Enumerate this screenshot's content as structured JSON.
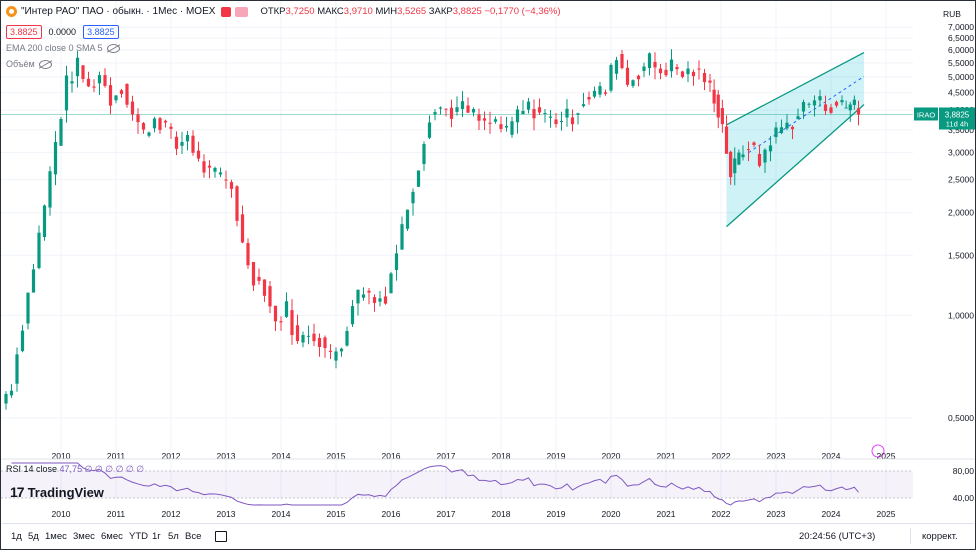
{
  "symbol": {
    "title": "\"Интер РАО\" ПАО · обыкн. · 1Мес · MOEX",
    "currency": "RUB",
    "ohlc": {
      "open_label": "ОТКР",
      "open": "3,7250",
      "high_label": "МАКС",
      "high": "3,9710",
      "low_label": "МИН",
      "low": "3,5265",
      "close_label": "ЗАКР",
      "close": "3,8825",
      "change": "−0,1770 (−4,36%)"
    },
    "sell_price": "3.8825",
    "spread": "0.0000",
    "buy_price": "3.8825",
    "ticker_tag": "IRAO",
    "last_price_tag": "3,8825",
    "countdown_tag": "11d 4h"
  },
  "indicators": {
    "ema": "EMA 200 close 0 SMA 5",
    "volume": "Объём",
    "rsi_name": "RSI 14 close",
    "rsi_values": "47,75  ∅ ∅ ∅ ∅ ∅ ∅",
    "rsi_ticks": [
      "80,00",
      "40,00"
    ]
  },
  "branding": {
    "logo_text": "TradingView",
    "logo_icon": "tradingview-logo-icon"
  },
  "bottom_bar": {
    "timeframes": [
      "1д",
      "5д",
      "1мес",
      "3мес",
      "6мес",
      "YTD",
      "1г",
      "5л",
      "Все"
    ],
    "clock": "20:24:56 (UTC+3)",
    "adjust": "коррект."
  },
  "colors": {
    "up": "#089981",
    "down": "#f23645",
    "channel": "#26c6da",
    "rsi": "#7e57c2",
    "lastprice": "#089981"
  },
  "chart_data": {
    "type": "candlestick",
    "interval": "1 month",
    "y_axis": {
      "scale": "log",
      "ticks": [
        0.5,
        1.0,
        1.5,
        2.0,
        2.5,
        3.0,
        3.5,
        4.0,
        4.5,
        5.0,
        5.5,
        6.0,
        6.5,
        7.0
      ],
      "tick_labels": [
        "0,5000",
        "1,0000",
        "1,5000",
        "2,0000",
        "2,5000",
        "3,0000",
        "3,5000",
        "4,0000",
        "4,5000",
        "5,0000",
        "5,5000",
        "6,0000",
        "6,5000",
        "7,0000"
      ],
      "range": [
        0.4,
        7.3
      ]
    },
    "x_axis": {
      "tick_labels": [
        "2010",
        "2011",
        "2012",
        "2013",
        "2014",
        "2015",
        "2016",
        "2017",
        "2018",
        "2019",
        "2020",
        "2021",
        "2022",
        "2023",
        "2024",
        "2025"
      ],
      "range": [
        2009.0,
        2025.4
      ]
    },
    "last_price": 3.8825,
    "channel": {
      "upper": [
        [
          2022.1,
          3.62
        ],
        [
          2024.6,
          5.9
        ]
      ],
      "lower": [
        [
          2022.1,
          1.82
        ],
        [
          2024.6,
          4.15
        ]
      ],
      "mid_dashed": [
        [
          2022.5,
          3.0
        ],
        [
          2024.6,
          5.02
        ]
      ]
    },
    "anchors": [
      [
        2009.0,
        0.55,
        0.63
      ],
      [
        2009.2,
        0.63,
        0.95
      ],
      [
        2009.4,
        0.95,
        1.4
      ],
      [
        2009.6,
        1.4,
        2.1
      ],
      [
        2009.8,
        2.1,
        3.2
      ],
      [
        2010.0,
        3.2,
        4.8
      ],
      [
        2010.2,
        4.8,
        5.4
      ],
      [
        2010.4,
        5.4,
        4.6
      ],
      [
        2010.6,
        4.6,
        5.1
      ],
      [
        2010.8,
        5.1,
        4.3
      ],
      [
        2011.0,
        4.3,
        4.7
      ],
      [
        2011.2,
        4.7,
        3.9
      ],
      [
        2011.4,
        3.9,
        3.4
      ],
      [
        2011.6,
        3.4,
        3.8
      ],
      [
        2011.8,
        3.8,
        3.6
      ],
      [
        2012.0,
        3.6,
        3.1
      ],
      [
        2012.2,
        3.1,
        3.4
      ],
      [
        2012.4,
        3.4,
        2.8
      ],
      [
        2012.6,
        2.8,
        2.6
      ],
      [
        2012.8,
        2.6,
        2.55
      ],
      [
        2013.0,
        2.55,
        2.4
      ],
      [
        2013.2,
        2.4,
        1.6
      ],
      [
        2013.4,
        1.6,
        1.3
      ],
      [
        2013.6,
        1.3,
        1.2
      ],
      [
        2013.8,
        1.2,
        0.95
      ],
      [
        2014.0,
        0.95,
        1.05
      ],
      [
        2014.2,
        1.05,
        0.82
      ],
      [
        2014.4,
        0.82,
        0.9
      ],
      [
        2014.6,
        0.9,
        0.85
      ],
      [
        2014.8,
        0.85,
        0.75
      ],
      [
        2015.0,
        0.75,
        0.82
      ],
      [
        2015.2,
        0.82,
        1.1
      ],
      [
        2015.4,
        1.1,
        1.2
      ],
      [
        2015.6,
        1.2,
        1.1
      ],
      [
        2015.8,
        1.1,
        1.15
      ],
      [
        2016.0,
        1.15,
        1.55
      ],
      [
        2016.2,
        1.55,
        2.1
      ],
      [
        2016.4,
        2.1,
        2.8
      ],
      [
        2016.6,
        2.8,
        3.9
      ],
      [
        2016.8,
        3.9,
        4.05
      ],
      [
        2017.0,
        4.05,
        3.95
      ],
      [
        2017.2,
        3.95,
        4.05
      ],
      [
        2017.4,
        4.05,
        3.85
      ],
      [
        2017.6,
        3.85,
        3.6
      ],
      [
        2017.8,
        3.6,
        3.7
      ],
      [
        2018.0,
        3.7,
        3.4
      ],
      [
        2018.2,
        3.4,
        3.9
      ],
      [
        2018.4,
        3.9,
        4.05
      ],
      [
        2018.6,
        4.05,
        3.95
      ],
      [
        2018.8,
        3.95,
        3.75
      ],
      [
        2019.0,
        3.75,
        3.8
      ],
      [
        2019.2,
        3.8,
        3.85
      ],
      [
        2019.4,
        3.85,
        4.3
      ],
      [
        2019.6,
        4.3,
        4.5
      ],
      [
        2019.8,
        4.5,
        4.55
      ],
      [
        2020.0,
        4.55,
        5.9
      ],
      [
        2020.2,
        5.9,
        4.8
      ],
      [
        2020.4,
        4.8,
        5.2
      ],
      [
        2020.6,
        5.2,
        5.6
      ],
      [
        2020.8,
        5.6,
        5.2
      ],
      [
        2021.0,
        5.2,
        5.4
      ],
      [
        2021.2,
        5.4,
        5.1
      ],
      [
        2021.4,
        5.1,
        5.2
      ],
      [
        2021.6,
        5.2,
        4.9
      ],
      [
        2021.8,
        4.9,
        4.4
      ],
      [
        2021.95,
        4.4,
        3.6
      ],
      [
        2022.1,
        3.6,
        2.6
      ],
      [
        2022.25,
        2.6,
        2.9
      ],
      [
        2022.4,
        2.9,
        3.2
      ],
      [
        2022.6,
        3.2,
        2.8
      ],
      [
        2022.8,
        2.8,
        3.3
      ],
      [
        2023.0,
        3.3,
        3.55
      ],
      [
        2023.2,
        3.55,
        3.7
      ],
      [
        2023.4,
        3.7,
        4.1
      ],
      [
        2023.6,
        4.1,
        4.3
      ],
      [
        2023.8,
        4.3,
        4.1
      ],
      [
        2024.0,
        4.1,
        4.2
      ],
      [
        2024.2,
        4.2,
        4.05
      ],
      [
        2024.35,
        4.05,
        4.3
      ],
      [
        2024.5,
        4.05,
        3.88
      ]
    ]
  }
}
